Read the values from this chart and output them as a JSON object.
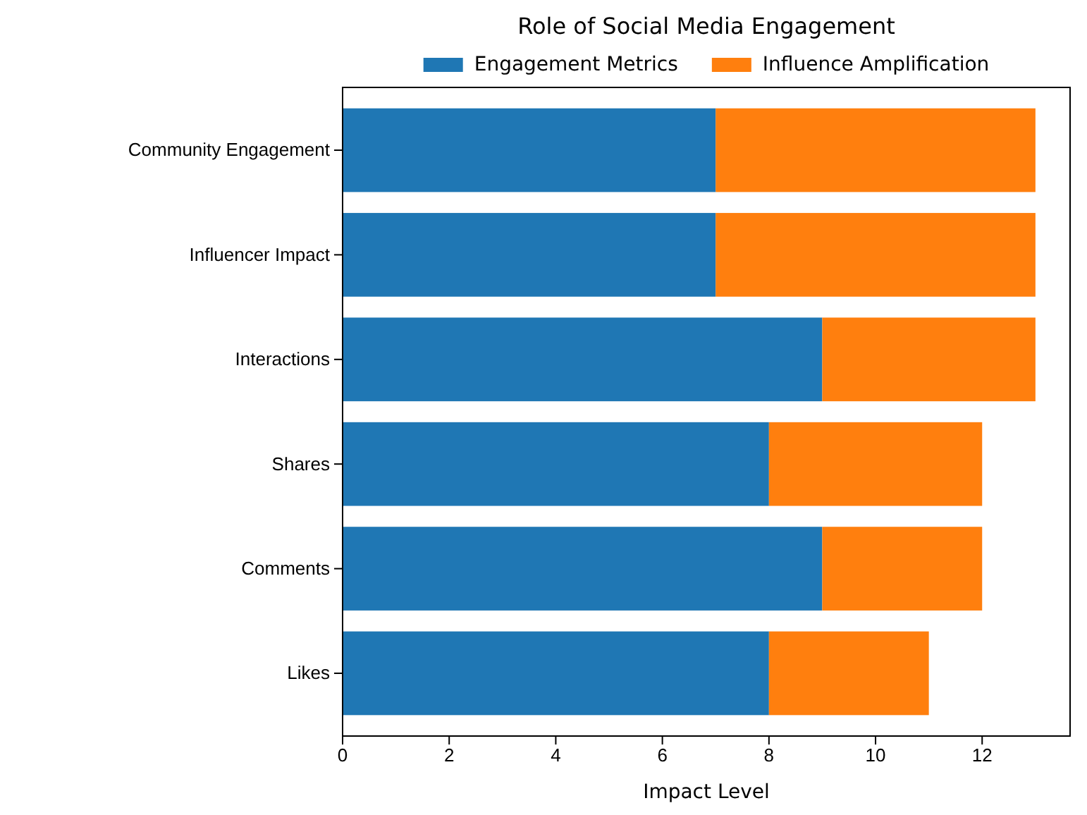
{
  "chart_data": {
    "type": "bar",
    "orientation": "horizontal",
    "stacked": true,
    "title": "Role of Social Media Engagement",
    "xlabel": "Impact Level",
    "categories": [
      "Community Engagement",
      "Influencer Impact",
      "Interactions",
      "Shares",
      "Comments",
      "Likes"
    ],
    "series": [
      {
        "name": "Engagement Metrics",
        "color": "#1f77b4",
        "values": [
          7,
          7,
          9,
          8,
          9,
          8
        ]
      },
      {
        "name": "Influence Amplification",
        "color": "#ff7f0e",
        "values": [
          6,
          6,
          4,
          4,
          3,
          3
        ]
      }
    ],
    "xlim": [
      0,
      13.65
    ],
    "xticks": [
      0,
      2,
      4,
      6,
      8,
      10,
      12
    ],
    "grid": false,
    "legend": "top"
  }
}
